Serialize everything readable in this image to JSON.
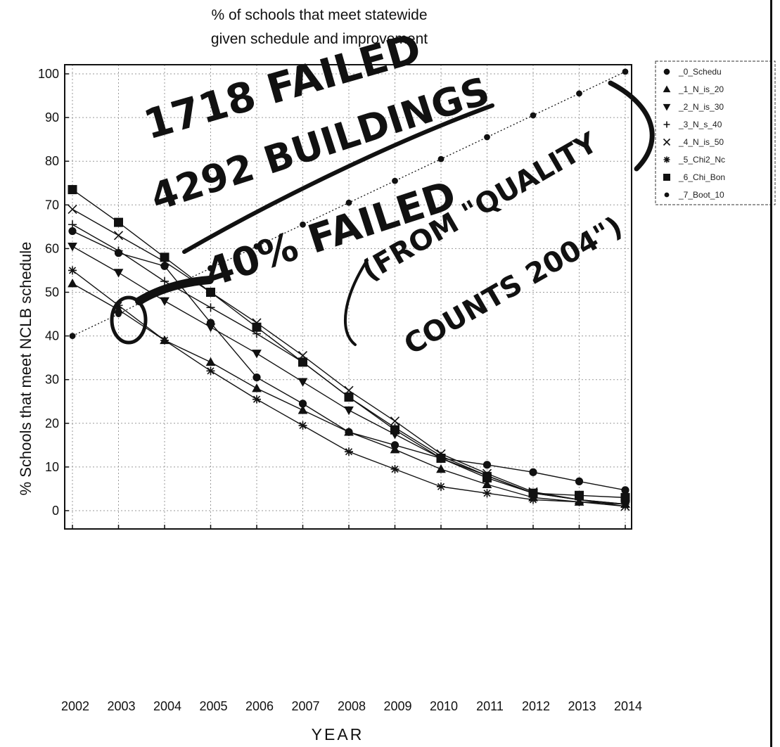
{
  "chart_data": {
    "type": "line",
    "title": "% of schools that meet statewide",
    "subtitle": "given schedule and improvement",
    "xlabel": "YEAR",
    "ylabel": "% Schools that meet NCLB schedule",
    "categories": [
      "2002",
      "2003",
      "2004",
      "2005",
      "2006",
      "2007",
      "2008",
      "2009",
      "2010",
      "2011",
      "2012",
      "2013",
      "2014"
    ],
    "yticks": [
      "0",
      "10",
      "20",
      "30",
      "40",
      "50",
      "60",
      "70",
      "80",
      "90",
      "100"
    ],
    "ylim": [
      0,
      100
    ],
    "grid": true,
    "legend_position": "right",
    "series": [
      {
        "name": "_0_Schedu",
        "marker": "circle",
        "values": [
          64,
          59,
          56,
          43,
          30.5,
          24.5,
          18,
          15,
          12,
          10.5,
          8.8,
          6.7,
          4.7
        ]
      },
      {
        "name": "_1_N_is_20",
        "marker": "triangle-up",
        "values": [
          52,
          46,
          39,
          34,
          28,
          23,
          18,
          14,
          9.5,
          6,
          3,
          2,
          1.5
        ]
      },
      {
        "name": "_2_N_is_30",
        "marker": "triangle-down",
        "values": [
          60.5,
          54.5,
          48,
          42,
          36,
          29.5,
          23,
          17.5,
          12,
          8,
          4,
          2.5,
          1.5
        ]
      },
      {
        "name": "_3_N_s_40",
        "marker": "plus",
        "values": [
          65.5,
          59.5,
          52.5,
          46.5,
          40.5,
          34,
          26,
          19,
          12.5,
          8,
          4,
          2.5,
          1.5
        ]
      },
      {
        "name": "_4_N_is_50",
        "marker": "x",
        "values": [
          69,
          63,
          57,
          50,
          43,
          35.5,
          27.5,
          20.5,
          13,
          8.5,
          4.3,
          2.5,
          1
        ]
      },
      {
        "name": "_5_Chi2_Nc",
        "marker": "asterisk",
        "values": [
          55,
          47,
          39,
          32,
          25.5,
          19.5,
          13.5,
          9.5,
          5.5,
          4,
          2.5,
          2,
          1
        ]
      },
      {
        "name": "_6_Chi_Bon",
        "marker": "square",
        "values": [
          73.5,
          66,
          58,
          50,
          42,
          34,
          26,
          18.5,
          12,
          7.5,
          4,
          3.5,
          3
        ]
      },
      {
        "name": "_7_Boot_10",
        "marker": "circle-small",
        "dotted": true,
        "values": [
          40,
          45,
          50.5,
          55.5,
          60.5,
          65.5,
          70.5,
          75.5,
          80.5,
          85.5,
          90.5,
          95.5,
          100.5
        ]
      }
    ]
  },
  "annotations": {
    "line1": "1718 FAILED",
    "line2": "4292 BUILDINGS",
    "line3": "40% FAILED",
    "line4": "(FROM \"QUALITY",
    "line5": "COUNTS 2004\")"
  }
}
